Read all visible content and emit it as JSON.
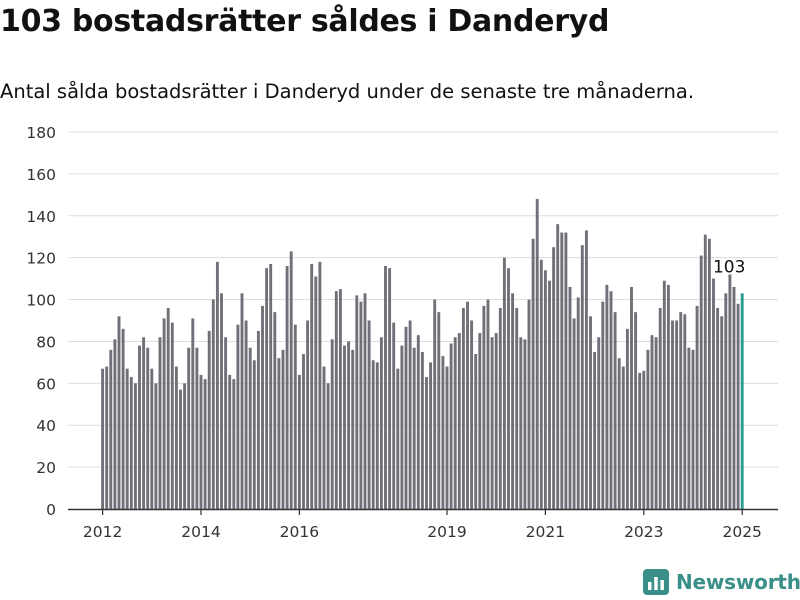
{
  "title": "103 bostadsrätter såldes i Danderyd",
  "subtitle": "Antal sålda bostadsrätter i Danderyd under de senaste tre månaderna.",
  "brand": {
    "name": "Newsworthy",
    "icon": "bar-chart-logo-icon",
    "color": "#3a8f88"
  },
  "colors": {
    "bar": "#707078",
    "highlight": "#2a9d8f",
    "grid": "#dddddd",
    "axis": "#333333"
  },
  "chart_data": {
    "type": "bar",
    "title": "103 bostadsrätter såldes i Danderyd",
    "xlabel": "",
    "ylabel": "",
    "ylim": [
      0,
      180
    ],
    "yticks": [
      "0",
      "20",
      "40",
      "60",
      "80",
      "100",
      "120",
      "140",
      "160",
      "180"
    ],
    "xticks": [
      {
        "label": "2012",
        "index": 0
      },
      {
        "label": "2014",
        "index": 24
      },
      {
        "label": "2016",
        "index": 48
      },
      {
        "label": "2019",
        "index": 84
      },
      {
        "label": "2021",
        "index": 108
      },
      {
        "label": "2023",
        "index": 132
      },
      {
        "label": "2025",
        "index": 156
      }
    ],
    "grid": true,
    "values": [
      67,
      68,
      76,
      81,
      92,
      86,
      67,
      63,
      60,
      78,
      82,
      77,
      67,
      60,
      82,
      91,
      96,
      89,
      68,
      57,
      60,
      77,
      91,
      77,
      64,
      62,
      85,
      100,
      118,
      103,
      82,
      64,
      62,
      88,
      103,
      90,
      77,
      71,
      85,
      97,
      115,
      117,
      94,
      72,
      76,
      116,
      123,
      88,
      64,
      74,
      90,
      117,
      111,
      118,
      68,
      60,
      81,
      104,
      105,
      78,
      80,
      76,
      102,
      99,
      103,
      90,
      71,
      70,
      82,
      116,
      115,
      89,
      67,
      78,
      87,
      90,
      77,
      83,
      75,
      63,
      70,
      100,
      94,
      73,
      68,
      79,
      82,
      84,
      96,
      99,
      90,
      74,
      84,
      97,
      100,
      82,
      84,
      96,
      120,
      115,
      103,
      96,
      82,
      81,
      100,
      129,
      148,
      119,
      114,
      109,
      125,
      136,
      132,
      132,
      106,
      91,
      101,
      126,
      133,
      92,
      75,
      82,
      99,
      107,
      104,
      94,
      72,
      68,
      86,
      106,
      94,
      65,
      66,
      76,
      83,
      82,
      96,
      109,
      107,
      90,
      90,
      94,
      93,
      77,
      76,
      97,
      121,
      131,
      129,
      110,
      96,
      92,
      103,
      112,
      106,
      98,
      103
    ],
    "highlight": {
      "index": 156,
      "label": "103"
    }
  }
}
